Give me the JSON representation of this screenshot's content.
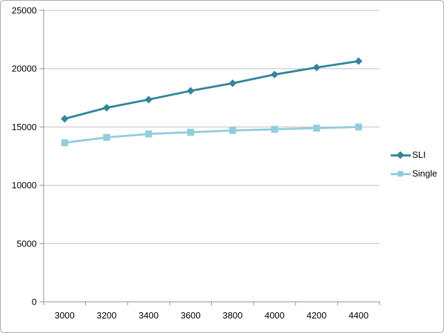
{
  "chart_data": {
    "type": "line",
    "title": "",
    "xlabel": "",
    "ylabel": "",
    "x": [
      "3000",
      "3200",
      "3400",
      "3600",
      "3800",
      "4000",
      "4200",
      "4400"
    ],
    "series": [
      {
        "name": "SLI",
        "marker": "diamond",
        "color": "#31859C",
        "values": [
          15700,
          16650,
          17350,
          18100,
          18750,
          19500,
          20100,
          20650
        ]
      },
      {
        "name": "Single",
        "marker": "square",
        "color": "#92CDDC",
        "values": [
          13650,
          14100,
          14400,
          14550,
          14700,
          14800,
          14900,
          15000
        ]
      }
    ],
    "ylim": [
      0,
      25000
    ],
    "yticks": [
      0,
      5000,
      10000,
      15000,
      20000,
      25000
    ],
    "grid": true,
    "legend_position": "right"
  },
  "colors": {
    "background": "#FFFFFF",
    "frame_border": "#A6A6A6",
    "gridline": "#BFBFBF",
    "axis": "#8E8E8E",
    "tick_label": "#000000"
  }
}
